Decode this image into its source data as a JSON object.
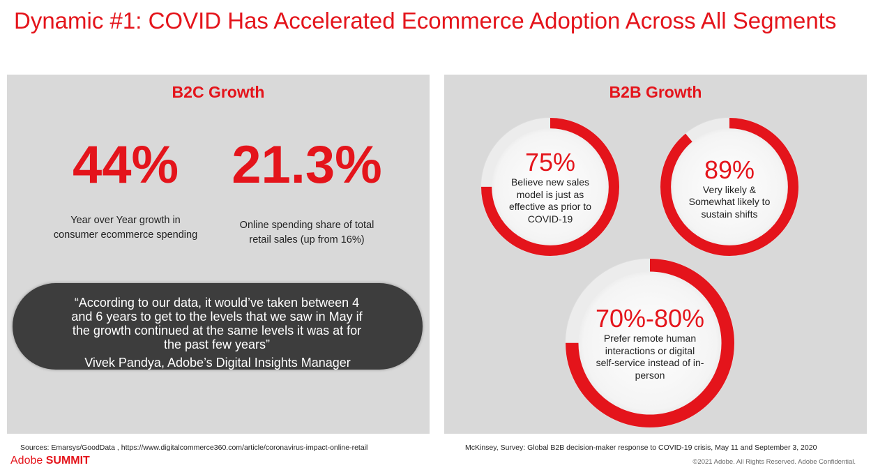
{
  "title": "Dynamic #1: COVID Has Accelerated Ecommerce Adoption Across All Segments",
  "b2c": {
    "heading": "B2C Growth",
    "stat1": {
      "value": "44%",
      "caption_line1": "Year over Year growth in",
      "caption_line2": "consumer ecommerce spending"
    },
    "stat2": {
      "value": "21.3%",
      "caption_line1": "Online spending share of total",
      "caption_line2": "retail sales (up from 16%)"
    },
    "quote": {
      "line1": "“According to our data, it would’ve taken between 4",
      "line2": "and 6 years to get to the levels that we saw in May if",
      "line3": "the growth continued at the same levels it was at for",
      "line4": "the past few years”",
      "author": "Vivek Pandya, Adobe’s Digital Insights Manager"
    },
    "source": "Sources: Emarsys/GoodData , https://www.digitalcommerce360.com/article/coronavirus-impact-online-retail"
  },
  "b2b": {
    "heading": "B2B Growth",
    "rings": [
      {
        "value": "75%",
        "fill": 0.75,
        "label_lines": [
          "Believe new sales",
          "model is just as",
          "effective as prior to",
          "COVID-19"
        ]
      },
      {
        "value": "89%",
        "fill": 0.89,
        "label_lines": [
          "Very likely &",
          "Somewhat likely to",
          "sustain shifts"
        ]
      },
      {
        "value": "70%-80%",
        "fill": 0.75,
        "label_lines": [
          "Prefer remote human",
          "interactions or digital",
          "self-service instead of in-",
          "person"
        ]
      }
    ],
    "source": "McKinsey, Survey: Global B2B decision-maker response to COVID-19 crisis, May 11 and September 3, 2020"
  },
  "brand": {
    "part1": "Adobe ",
    "part2": "SUMMIT"
  },
  "copyright": "©2021 Adobe. All Rights Reserved. Adobe Confidential.",
  "colors": {
    "accent": "#e4141b",
    "panel": "#d9d9d9",
    "quote_bg": "#3d3d3d"
  }
}
